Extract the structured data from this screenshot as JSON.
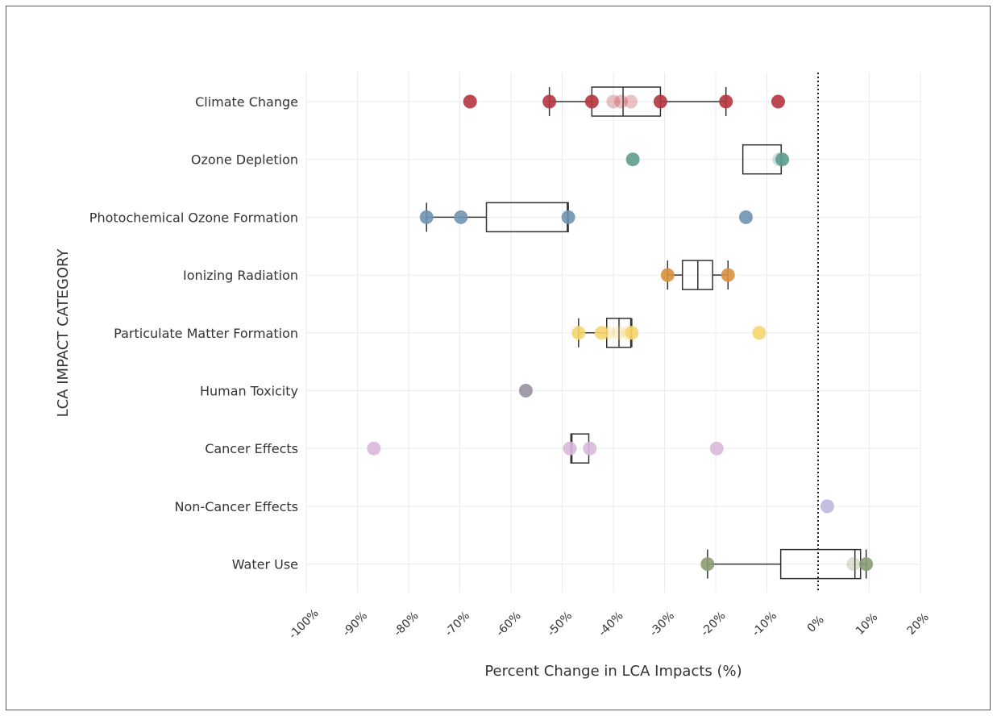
{
  "chart_data": {
    "type": "scatter",
    "subtype": "box-and-points",
    "xlabel": "Percent Change in LCA Impacts (%)",
    "ylabel": "LCA IMPACT CATEGORY",
    "xlim": [
      -100,
      20
    ],
    "xticks": [
      "-100%",
      "-90%",
      "-80%",
      "-70%",
      "-60%",
      "-50%",
      "-40%",
      "-30%",
      "-20%",
      "-10%",
      "0%",
      "10%",
      "20%"
    ],
    "xtick_values": [
      -100,
      -90,
      -80,
      -70,
      -60,
      -50,
      -40,
      -30,
      -20,
      -10,
      0,
      10,
      20
    ],
    "reference_line": 0,
    "grid": true,
    "categories": [
      {
        "name": "Climate Change",
        "color": "#b5343f",
        "box": {
          "whisker_low": -52.5,
          "q1": -44.2,
          "median": -38.1,
          "q3": -30.8,
          "whisker_high": -18.0
        },
        "points": [
          -68.0,
          -52.5,
          -44.2,
          -40.0,
          -38.5,
          -36.6,
          -30.8,
          -18.0,
          -7.8
        ],
        "faded": [
          false,
          false,
          false,
          true,
          true,
          true,
          false,
          false,
          false
        ]
      },
      {
        "name": "Ozone Depletion",
        "color": "#5e9c90",
        "box": {
          "whisker_low": -14.7,
          "q1": -14.7,
          "median": -7.2,
          "q3": -7.2,
          "whisker_high": -7.2
        },
        "points": [
          -36.2,
          -7.6,
          -7.0
        ],
        "faded": [
          false,
          true,
          false
        ]
      },
      {
        "name": "Photochemical Ozone Formation",
        "color": "#6f94b4",
        "box": {
          "whisker_low": -76.5,
          "q1": -64.8,
          "median": -49.0,
          "q3": -48.8,
          "whisker_high": -48.8
        },
        "points": [
          -76.5,
          -69.8,
          -48.8,
          -14.1
        ],
        "faded": [
          false,
          false,
          false,
          false
        ]
      },
      {
        "name": "Ionizing Radiation",
        "color": "#d7913f",
        "box": {
          "whisker_low": -29.4,
          "q1": -26.5,
          "median": -23.5,
          "q3": -20.6,
          "whisker_high": -17.6
        },
        "points": [
          -29.4,
          -17.6
        ],
        "faded": [
          false,
          false
        ]
      },
      {
        "name": "Particulate Matter Formation",
        "color": "#f5d56e",
        "box": {
          "whisker_low": -46.8,
          "q1": -41.3,
          "median": -38.9,
          "q3": -36.6,
          "whisker_high": -36.4
        },
        "points": [
          -46.8,
          -42.3,
          -41.0,
          -39.0,
          -37.2,
          -36.4,
          -11.5
        ],
        "faded": [
          false,
          false,
          true,
          true,
          true,
          false,
          false
        ]
      },
      {
        "name": "Human Toxicity",
        "color": "#9a909e",
        "box": null,
        "points": [
          -57.1
        ],
        "faded": [
          false
        ]
      },
      {
        "name": "Cancer Effects",
        "color": "#d9b8da",
        "box": {
          "whisker_low": -48.3,
          "q1": -48.3,
          "median": -48.1,
          "q3": -44.8,
          "whisker_high": -44.8
        },
        "points": [
          -86.8,
          -48.5,
          -44.6,
          -19.8
        ],
        "faded": [
          false,
          false,
          false,
          false
        ]
      },
      {
        "name": "Non-Cancer Effects",
        "color": "#bcb6dc",
        "box": null,
        "points": [
          1.8
        ],
        "faded": [
          false
        ]
      },
      {
        "name": "Water Use",
        "color": "#8a9c72",
        "box": {
          "whisker_low": -21.6,
          "q1": -7.3,
          "median": 7.2,
          "q3": 8.3,
          "whisker_high": 9.4
        },
        "points": [
          -21.6,
          6.9,
          9.4
        ],
        "faded": [
          false,
          true,
          false
        ]
      }
    ]
  }
}
